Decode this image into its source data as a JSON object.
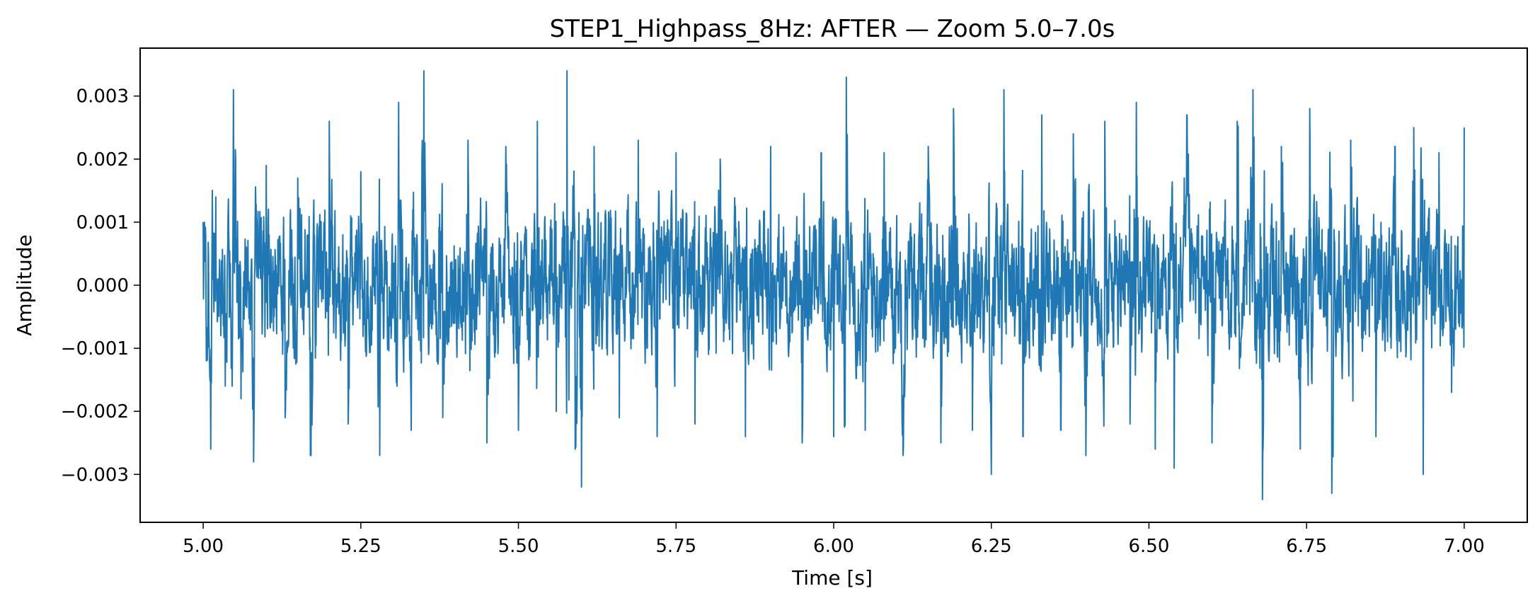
{
  "chart_data": {
    "type": "line",
    "title": "STEP1_Highpass_8Hz: AFTER — Zoom 5.0–7.0s",
    "xlabel": "Time [s]",
    "ylabel": "Amplitude",
    "xlim": [
      4.9,
      7.1
    ],
    "ylim": [
      -0.00376,
      0.00376
    ],
    "grid": false,
    "x_ticks": [
      {
        "value": 5.0,
        "label": "5.00"
      },
      {
        "value": 5.25,
        "label": "5.25"
      },
      {
        "value": 5.5,
        "label": "5.50"
      },
      {
        "value": 5.75,
        "label": "5.75"
      },
      {
        "value": 6.0,
        "label": "6.00"
      },
      {
        "value": 6.25,
        "label": "6.25"
      },
      {
        "value": 6.5,
        "label": "6.50"
      },
      {
        "value": 6.75,
        "label": "6.75"
      },
      {
        "value": 7.0,
        "label": "7.00"
      }
    ],
    "y_ticks": [
      {
        "value": 0.003,
        "label": "0.003"
      },
      {
        "value": 0.002,
        "label": "0.002"
      },
      {
        "value": 0.001,
        "label": "0.001"
      },
      {
        "value": 0.0,
        "label": "0.000"
      },
      {
        "value": -0.001,
        "label": "−0.001"
      },
      {
        "value": -0.002,
        "label": "−0.002"
      },
      {
        "value": -0.003,
        "label": "−0.003"
      }
    ],
    "series": [
      {
        "color": "#1f77b4",
        "points": [
          [
            5.0,
            0.001
          ],
          [
            5.005,
            -0.0012
          ],
          [
            5.012,
            -0.0026
          ],
          [
            5.02,
            0.0014
          ],
          [
            5.035,
            -0.0016
          ],
          [
            5.048,
            0.0031
          ],
          [
            5.06,
            -0.0018
          ],
          [
            5.08,
            -0.0028
          ],
          [
            5.1,
            0.0019
          ],
          [
            5.13,
            -0.0021
          ],
          [
            5.15,
            0.0017
          ],
          [
            5.17,
            -0.0027
          ],
          [
            5.2,
            0.0026
          ],
          [
            5.23,
            -0.0022
          ],
          [
            5.25,
            0.0018
          ],
          [
            5.28,
            -0.0027
          ],
          [
            5.31,
            0.0029
          ],
          [
            5.33,
            -0.0023
          ],
          [
            5.35,
            0.0034
          ],
          [
            5.38,
            -0.0021
          ],
          [
            5.42,
            0.0023
          ],
          [
            5.45,
            -0.0025
          ],
          [
            5.48,
            0.0022
          ],
          [
            5.5,
            -0.0023
          ],
          [
            5.53,
            0.0026
          ],
          [
            5.56,
            -0.002
          ],
          [
            5.577,
            0.0034
          ],
          [
            5.59,
            -0.0026
          ],
          [
            5.6,
            -0.0032
          ],
          [
            5.62,
            0.0022
          ],
          [
            5.66,
            -0.0021
          ],
          [
            5.69,
            0.0023
          ],
          [
            5.72,
            -0.0024
          ],
          [
            5.75,
            0.0021
          ],
          [
            5.78,
            -0.0022
          ],
          [
            5.82,
            0.002
          ],
          [
            5.86,
            -0.0024
          ],
          [
            5.9,
            0.0022
          ],
          [
            5.95,
            -0.0025
          ],
          [
            5.98,
            0.0021
          ],
          [
            6.0,
            -0.0024
          ],
          [
            6.02,
            0.0033
          ],
          [
            6.05,
            -0.0023
          ],
          [
            6.08,
            0.0021
          ],
          [
            6.11,
            -0.0027
          ],
          [
            6.15,
            0.0022
          ],
          [
            6.17,
            -0.0025
          ],
          [
            6.19,
            0.0028
          ],
          [
            6.22,
            -0.0023
          ],
          [
            6.25,
            -0.003
          ],
          [
            6.27,
            0.0031
          ],
          [
            6.3,
            -0.0024
          ],
          [
            6.33,
            0.0027
          ],
          [
            6.36,
            -0.0023
          ],
          [
            6.38,
            0.0024
          ],
          [
            6.4,
            -0.0027
          ],
          [
            6.43,
            0.0026
          ],
          [
            6.47,
            -0.0022
          ],
          [
            6.48,
            0.0029
          ],
          [
            6.51,
            -0.0026
          ],
          [
            6.54,
            -0.0029
          ],
          [
            6.56,
            0.0027
          ],
          [
            6.6,
            -0.0025
          ],
          [
            6.64,
            0.0026
          ],
          [
            6.665,
            0.0031
          ],
          [
            6.68,
            -0.0034
          ],
          [
            6.71,
            0.0022
          ],
          [
            6.74,
            -0.0026
          ],
          [
            6.755,
            0.0028
          ],
          [
            6.79,
            -0.0033
          ],
          [
            6.82,
            0.0023
          ],
          [
            6.86,
            -0.0024
          ],
          [
            6.89,
            0.0022
          ],
          [
            6.92,
            0.0025
          ],
          [
            6.935,
            -0.003
          ],
          [
            6.96,
            0.0021
          ],
          [
            6.98,
            -0.0017
          ],
          [
            7.0,
            0.0025
          ]
        ]
      }
    ]
  }
}
